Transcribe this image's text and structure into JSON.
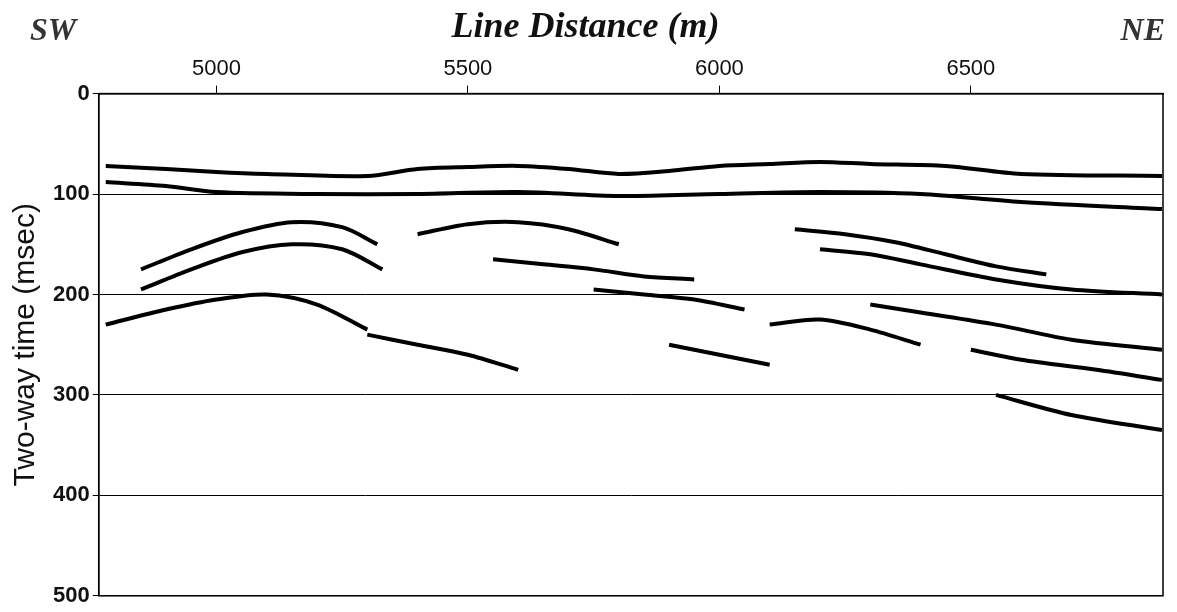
{
  "chart_data": {
    "type": "line",
    "title": "Line Distance (m)",
    "annotations": [
      "SW",
      "NE"
    ],
    "y_label": "Two-way time (msec)",
    "xlim": [
      4766,
      6882
    ],
    "xticks": [
      5000,
      5500,
      6000,
      6500
    ],
    "ylim": [
      0,
      500
    ],
    "yticks": [
      0,
      100,
      200,
      300,
      400,
      500
    ],
    "grid": true,
    "series": [
      {
        "color": "#000000",
        "x": [
          4780,
          4900,
          5000,
          5100,
          5300,
          5400,
          5500,
          5600,
          5700,
          5800,
          5900,
          6000,
          6100,
          6200,
          6300,
          6450,
          6600,
          6880
        ],
        "values": [
          72,
          75,
          78,
          80,
          82,
          75,
          73,
          72,
          75,
          80,
          77,
          72,
          70,
          68,
          70,
          72,
          80,
          82
        ]
      },
      {
        "color": "#000000",
        "x": [
          4780,
          4900,
          5000,
          5200,
          5400,
          5600,
          5800,
          6000,
          6200,
          6400,
          6600,
          6880
        ],
        "values": [
          88,
          92,
          98,
          100,
          100,
          98,
          102,
          100,
          98,
          100,
          108,
          115
        ]
      },
      {
        "color": "#000000",
        "x": [
          4850,
          4950,
          5050,
          5150,
          5250,
          5320
        ],
        "values": [
          175,
          155,
          138,
          128,
          133,
          150
        ]
      },
      {
        "color": "#000000",
        "x": [
          4850,
          4950,
          5050,
          5150,
          5250,
          5330
        ],
        "values": [
          195,
          175,
          158,
          150,
          155,
          175
        ]
      },
      {
        "color": "#000000",
        "x": [
          4780,
          4900,
          5000,
          5100,
          5200,
          5300
        ],
        "values": [
          230,
          215,
          205,
          200,
          210,
          235
        ]
      },
      {
        "color": "#000000",
        "x": [
          5400,
          5500,
          5600,
          5700,
          5800
        ],
        "values": [
          140,
          130,
          128,
          135,
          150
        ]
      },
      {
        "color": "#000000",
        "x": [
          5550,
          5650,
          5750,
          5850,
          5950
        ],
        "values": [
          165,
          170,
          175,
          182,
          185
        ]
      },
      {
        "color": "#000000",
        "x": [
          5750,
          5850,
          5950,
          6050
        ],
        "values": [
          195,
          200,
          205,
          215
        ]
      },
      {
        "color": "#000000",
        "x": [
          6150,
          6250,
          6350,
          6450,
          6550,
          6650
        ],
        "values": [
          135,
          140,
          148,
          160,
          172,
          180
        ]
      },
      {
        "color": "#000000",
        "x": [
          6200,
          6300,
          6400,
          6550,
          6700,
          6880
        ],
        "values": [
          155,
          160,
          170,
          185,
          195,
          200
        ]
      },
      {
        "color": "#000000",
        "x": [
          6300,
          6400,
          6550,
          6700,
          6880
        ],
        "values": [
          210,
          218,
          230,
          245,
          255
        ]
      },
      {
        "color": "#000000",
        "x": [
          6500,
          6600,
          6750,
          6880
        ],
        "values": [
          255,
          265,
          275,
          285
        ]
      },
      {
        "color": "#000000",
        "x": [
          6550,
          6700,
          6880
        ],
        "values": [
          300,
          320,
          335
        ]
      },
      {
        "color": "#000000",
        "x": [
          6100,
          6200,
          6300,
          6400
        ],
        "values": [
          230,
          225,
          235,
          250
        ]
      },
      {
        "color": "#000000",
        "x": [
          5300,
          5400,
          5500,
          5600
        ],
        "values": [
          240,
          250,
          260,
          275
        ]
      },
      {
        "color": "#000000",
        "x": [
          5900,
          6000,
          6100
        ],
        "values": [
          250,
          260,
          270
        ]
      }
    ]
  }
}
